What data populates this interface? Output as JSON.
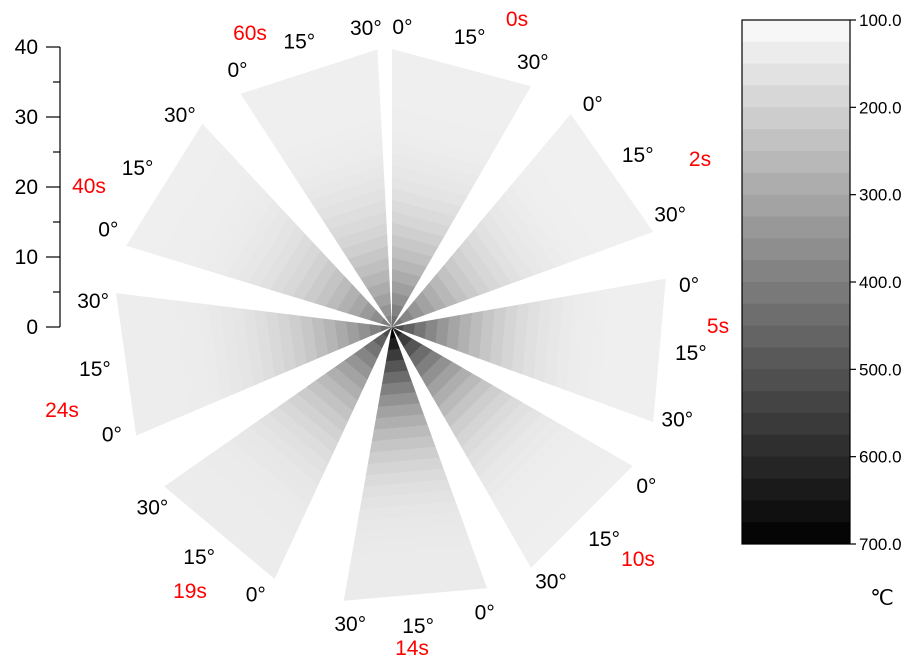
{
  "chart_data": {
    "type": "heatmap",
    "subtype": "polar-sector-contour",
    "radial_axis": {
      "range": [
        0,
        40
      ],
      "ticks": [
        "0",
        "10",
        "20",
        "30",
        "40"
      ],
      "tick_values": [
        0,
        10,
        20,
        30,
        40
      ]
    },
    "colorbar": {
      "range": [
        100,
        700
      ],
      "ticks": [
        "100.0",
        "200.0",
        "300.0",
        "400.0",
        "500.0",
        "600.0",
        "700.0"
      ],
      "tick_values": [
        100,
        200,
        300,
        400,
        500,
        600,
        700
      ],
      "unit": "℃",
      "colormap": "white-to-black",
      "levels": 24
    },
    "sectors": [
      {
        "time": "0s",
        "angle_labels": [
          "0°",
          "15°",
          "30°"
        ],
        "outer_value": 130,
        "inner_value": 430
      },
      {
        "time": "2s",
        "angle_labels": [
          "0°",
          "15°",
          "30°"
        ],
        "outer_value": 128,
        "inner_value": 420
      },
      {
        "time": "5s",
        "angle_labels": [
          "0°",
          "15°",
          "30°"
        ],
        "outer_value": 130,
        "inner_value": 520
      },
      {
        "time": "10s",
        "angle_labels": [
          "0°",
          "15°",
          "30°"
        ],
        "outer_value": 132,
        "inner_value": 620
      },
      {
        "time": "14s",
        "angle_labels": [
          "0°",
          "15°",
          "30°"
        ],
        "outer_value": 140,
        "inner_value": 700
      },
      {
        "time": "19s",
        "angle_labels": [
          "0°",
          "15°",
          "30°"
        ],
        "outer_value": 138,
        "inner_value": 520
      },
      {
        "time": "24s",
        "angle_labels": [
          "0°",
          "15°",
          "30°"
        ],
        "outer_value": 135,
        "inner_value": 430
      },
      {
        "time": "40s",
        "angle_labels": [
          "0°",
          "15°",
          "30°"
        ],
        "outer_value": 132,
        "inner_value": 400
      },
      {
        "time": "60s",
        "angle_labels": [
          "0°",
          "15°",
          "30°"
        ],
        "outer_value": 130,
        "inner_value": 380
      }
    ]
  },
  "colors": {
    "time_label": "#ff0000",
    "text": "#000000",
    "background": "#ffffff"
  }
}
